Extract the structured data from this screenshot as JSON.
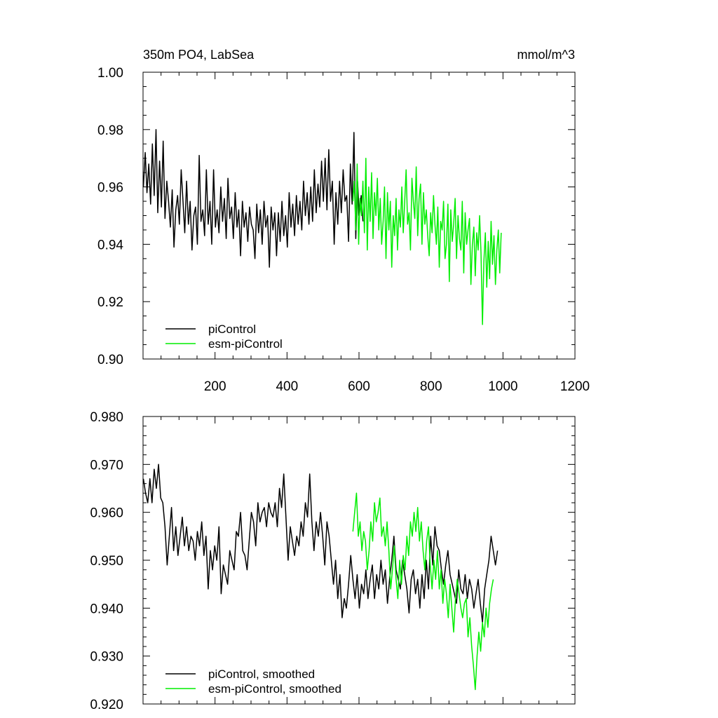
{
  "colors": {
    "piControl": "#000000",
    "esm": "#00ee00"
  },
  "chart_data": [
    {
      "type": "line",
      "title_left": "350m PO4, LabSea",
      "title_right": "mmol/m^3",
      "xlim": [
        0,
        1200
      ],
      "ylim": [
        0.9,
        1.0
      ],
      "x_ticks": [
        200,
        400,
        600,
        800,
        1000,
        1200
      ],
      "y_ticks": [
        "0.90",
        "0.92",
        "0.94",
        "0.96",
        "0.98",
        "1.00"
      ],
      "legend": [
        "piControl",
        "esm-piControl"
      ],
      "series": [
        {
          "name": "piControl",
          "x_start": 1,
          "x_step": 5,
          "values": [
            0.96,
            0.972,
            0.958,
            0.968,
            0.954,
            0.975,
            0.957,
            0.98,
            0.951,
            0.969,
            0.953,
            0.976,
            0.949,
            0.962,
            0.955,
            0.946,
            0.959,
            0.939,
            0.952,
            0.957,
            0.947,
            0.966,
            0.955,
            0.944,
            0.962,
            0.947,
            0.955,
            0.938,
            0.95,
            0.953,
            0.94,
            0.971,
            0.948,
            0.952,
            0.943,
            0.966,
            0.947,
            0.955,
            0.94,
            0.966,
            0.946,
            0.952,
            0.944,
            0.96,
            0.948,
            0.956,
            0.942,
            0.963,
            0.949,
            0.953,
            0.942,
            0.958,
            0.946,
            0.952,
            0.936,
            0.955,
            0.946,
            0.951,
            0.941,
            0.953,
            0.947,
            0.945,
            0.935,
            0.954,
            0.944,
            0.952,
            0.94,
            0.955,
            0.946,
            0.95,
            0.932,
            0.953,
            0.945,
            0.951,
            0.936,
            0.951,
            0.941,
            0.955,
            0.943,
            0.95,
            0.939,
            0.958,
            0.946,
            0.954,
            0.943,
            0.957,
            0.947,
            0.955,
            0.945,
            0.962,
            0.95,
            0.958,
            0.947,
            0.96,
            0.948,
            0.966,
            0.951,
            0.961,
            0.953,
            0.969,
            0.955,
            0.97,
            0.952,
            0.973,
            0.955,
            0.962,
            0.94,
            0.958,
            0.947,
            0.962,
            0.951,
            0.966,
            0.955,
            0.957,
            0.941,
            0.968,
            0.954,
            0.979,
            0.942,
            0.962,
            0.95,
            0.957,
            0.948
          ]
        },
        {
          "name": "esm-piControl",
          "x_start": 583,
          "x_step": 4,
          "values": [
            0.955,
            0.962,
            0.945,
            0.968,
            0.94,
            0.956,
            0.95,
            0.962,
            0.944,
            0.97,
            0.938,
            0.96,
            0.948,
            0.965,
            0.942,
            0.958,
            0.95,
            0.963,
            0.945,
            0.956,
            0.94,
            0.948,
            0.96,
            0.935,
            0.958,
            0.945,
            0.955,
            0.932,
            0.95,
            0.943,
            0.956,
            0.938,
            0.952,
            0.946,
            0.96,
            0.944,
            0.955,
            0.966,
            0.947,
            0.951,
            0.938,
            0.963,
            0.955,
            0.949,
            0.967,
            0.943,
            0.956,
            0.961,
            0.94,
            0.958,
            0.947,
            0.952,
            0.943,
            0.936,
            0.951,
            0.944,
            0.957,
            0.947,
            0.94,
            0.953,
            0.932,
            0.948,
            0.945,
            0.955,
            0.935,
            0.94,
            0.954,
            0.927,
            0.952,
            0.941,
            0.947,
            0.956,
            0.935,
            0.95,
            0.942,
            0.938,
            0.955,
            0.93,
            0.951,
            0.94,
            0.945,
            0.949,
            0.926,
            0.94,
            0.946,
            0.929,
            0.944,
            0.938,
            0.95,
            0.937,
            0.912,
            0.934,
            0.944,
            0.925,
            0.941,
            0.928,
            0.948,
            0.933,
            0.943,
            0.926,
            0.938,
            0.945,
            0.93,
            0.944
          ]
        }
      ]
    },
    {
      "type": "line",
      "xlim": [
        0,
        1200
      ],
      "ylim": [
        0.92,
        0.98
      ],
      "y_ticks": [
        "0.920",
        "0.930",
        "0.940",
        "0.950",
        "0.960",
        "0.970",
        "0.980"
      ],
      "legend": [
        "piControl, smoothed",
        "esm-piControl, smoothed"
      ],
      "series": [
        {
          "name": "piControl, smoothed",
          "x_start": 1,
          "x_step": 6,
          "values": [
            0.967,
            0.964,
            0.962,
            0.967,
            0.962,
            0.969,
            0.965,
            0.97,
            0.963,
            0.962,
            0.957,
            0.949,
            0.955,
            0.961,
            0.952,
            0.957,
            0.951,
            0.955,
            0.959,
            0.953,
            0.957,
            0.952,
            0.955,
            0.954,
            0.95,
            0.956,
            0.953,
            0.958,
            0.951,
            0.955,
            0.944,
            0.952,
            0.948,
            0.953,
            0.95,
            0.957,
            0.943,
            0.949,
            0.947,
            0.945,
            0.952,
            0.95,
            0.948,
            0.956,
            0.955,
            0.96,
            0.952,
            0.951,
            0.948,
            0.954,
            0.96,
            0.958,
            0.953,
            0.962,
            0.958,
            0.96,
            0.961,
            0.957,
            0.962,
            0.96,
            0.959,
            0.962,
            0.957,
            0.965,
            0.961,
            0.968,
            0.959,
            0.95,
            0.957,
            0.954,
            0.951,
            0.955,
            0.953,
            0.958,
            0.955,
            0.962,
            0.959,
            0.968,
            0.958,
            0.952,
            0.958,
            0.955,
            0.96,
            0.955,
            0.949,
            0.958,
            0.955,
            0.95,
            0.945,
            0.95,
            0.942,
            0.947,
            0.938,
            0.942,
            0.94,
            0.945,
            0.951,
            0.946,
            0.942,
            0.947,
            0.94,
            0.945,
            0.943,
            0.948,
            0.942,
            0.946,
            0.949,
            0.942,
            0.947,
            0.944,
            0.95,
            0.945,
            0.948,
            0.941,
            0.946,
            0.95,
            0.955,
            0.948,
            0.946,
            0.944,
            0.95,
            0.947,
            0.944,
            0.939,
            0.946,
            0.948,
            0.943,
            0.946,
            0.94,
            0.947,
            0.942,
            0.95,
            0.944,
            0.955,
            0.949,
            0.957,
            0.953,
            0.952,
            0.948,
            0.945,
            0.949,
            0.952,
            0.947,
            0.945,
            0.943,
            0.941,
            0.948,
            0.944,
            0.943,
            0.947,
            0.942,
            0.946,
            0.944,
            0.94,
            0.943,
            0.946,
            0.941,
            0.937,
            0.944,
            0.947,
            0.95,
            0.955,
            0.952,
            0.949,
            0.952
          ]
        },
        {
          "name": "esm-piControl, smoothed",
          "x_start": 583,
          "x_step": 5,
          "values": [
            0.956,
            0.96,
            0.964,
            0.955,
            0.958,
            0.952,
            0.956,
            0.954,
            0.948,
            0.952,
            0.958,
            0.954,
            0.962,
            0.958,
            0.96,
            0.963,
            0.955,
            0.957,
            0.953,
            0.958,
            0.952,
            0.944,
            0.948,
            0.953,
            0.946,
            0.942,
            0.95,
            0.945,
            0.951,
            0.948,
            0.955,
            0.951,
            0.958,
            0.955,
            0.96,
            0.956,
            0.961,
            0.954,
            0.958,
            0.952,
            0.948,
            0.954,
            0.957,
            0.949,
            0.944,
            0.95,
            0.946,
            0.952,
            0.944,
            0.948,
            0.941,
            0.946,
            0.943,
            0.938,
            0.945,
            0.94,
            0.935,
            0.942,
            0.946,
            0.943,
            0.94,
            0.938,
            0.941,
            0.942,
            0.934,
            0.938,
            0.932,
            0.928,
            0.923,
            0.93,
            0.935,
            0.931,
            0.937,
            0.934,
            0.94,
            0.936,
            0.941,
            0.944,
            0.946
          ]
        }
      ]
    }
  ]
}
